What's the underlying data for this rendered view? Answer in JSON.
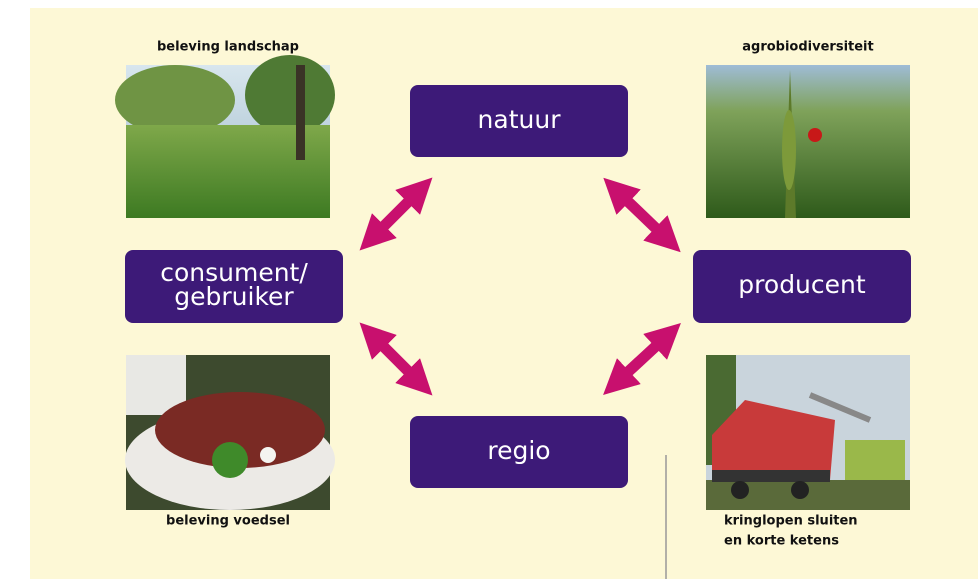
{
  "nodes": [
    {
      "lines": [
        "natuur"
      ]
    },
    {
      "lines": [
        "consument/",
        "gebruiker"
      ]
    },
    {
      "lines": [
        "producent"
      ]
    },
    {
      "lines": [
        "regio"
      ]
    }
  ],
  "photos": [
    {
      "caption": [
        "beleving landschap"
      ]
    },
    {
      "caption": [
        "agrobiodiversiteit"
      ]
    },
    {
      "caption": [
        "beleving voedsel"
      ]
    },
    {
      "caption": [
        "kringlopen sluiten",
        "en korte ketens"
      ]
    }
  ]
}
